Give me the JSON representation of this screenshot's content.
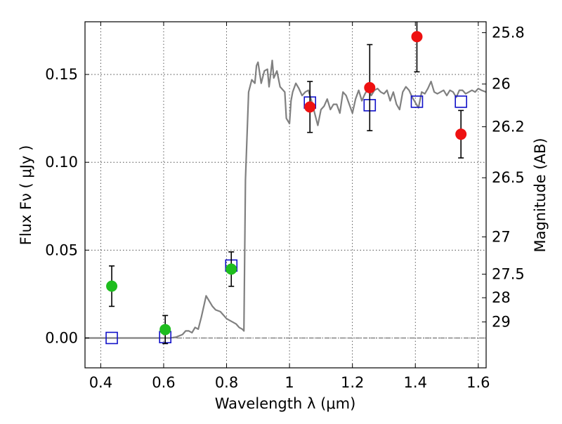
{
  "chart_data": {
    "type": "scatter",
    "xlabel": "Wavelength  λ (μm)",
    "ylabel": "Flux  Fν  ( μJy )",
    "ylabel_right": "Magnitude (AB)",
    "xlim": [
      0.35,
      1.625
    ],
    "ylim": [
      -0.017,
      0.18
    ],
    "x_ticks": [
      0.4,
      0.6,
      0.8,
      1.0,
      1.2,
      1.4,
      1.6
    ],
    "x_tick_labels": [
      "0.4",
      "0.6",
      "0.8",
      "1",
      "1.2",
      "1.4",
      "1.6"
    ],
    "y_ticks": [
      0.0,
      0.05,
      0.1,
      0.15
    ],
    "y_tick_labels": [
      "0.00",
      "0.05",
      "0.10",
      "0.15"
    ],
    "right_ticks": [
      {
        "label": "25.8",
        "mag": 25.8
      },
      {
        "label": "26",
        "mag": 26.0
      },
      {
        "label": "26.2",
        "mag": 26.2
      },
      {
        "label": "26.5",
        "mag": 26.5
      },
      {
        "label": "27",
        "mag": 27.0
      },
      {
        "label": "27.5",
        "mag": 27.5
      },
      {
        "label": "28",
        "mag": 28.0
      },
      {
        "label": "29",
        "mag": 29.0
      }
    ],
    "grid": true,
    "zero_line": 0.0,
    "colors": {
      "model": "#808080",
      "green": "#1ebd1e",
      "red": "#ee1111",
      "blue": "#1010c8",
      "errorbar": "#000000"
    },
    "model_spectrum": [
      [
        0.35,
        0.0
      ],
      [
        0.62,
        0.0
      ],
      [
        0.64,
        0.0005
      ],
      [
        0.66,
        0.002
      ],
      [
        0.67,
        0.004
      ],
      [
        0.68,
        0.004
      ],
      [
        0.69,
        0.003
      ],
      [
        0.7,
        0.006
      ],
      [
        0.71,
        0.005
      ],
      [
        0.72,
        0.012
      ],
      [
        0.73,
        0.02
      ],
      [
        0.735,
        0.024
      ],
      [
        0.745,
        0.021
      ],
      [
        0.755,
        0.018
      ],
      [
        0.765,
        0.016
      ],
      [
        0.78,
        0.015
      ],
      [
        0.79,
        0.013
      ],
      [
        0.8,
        0.011
      ],
      [
        0.81,
        0.01
      ],
      [
        0.82,
        0.009
      ],
      [
        0.83,
        0.008
      ],
      [
        0.84,
        0.006
      ],
      [
        0.85,
        0.005
      ],
      [
        0.855,
        0.004
      ],
      [
        0.86,
        0.09
      ],
      [
        0.87,
        0.14
      ],
      [
        0.88,
        0.147
      ],
      [
        0.89,
        0.145
      ],
      [
        0.895,
        0.155
      ],
      [
        0.9,
        0.157
      ],
      [
        0.91,
        0.145
      ],
      [
        0.92,
        0.152
      ],
      [
        0.93,
        0.153
      ],
      [
        0.935,
        0.143
      ],
      [
        0.94,
        0.15
      ],
      [
        0.945,
        0.158
      ],
      [
        0.95,
        0.148
      ],
      [
        0.96,
        0.152
      ],
      [
        0.97,
        0.143
      ],
      [
        0.985,
        0.14
      ],
      [
        0.99,
        0.125
      ],
      [
        1.0,
        0.122
      ],
      [
        1.005,
        0.135
      ],
      [
        1.01,
        0.14
      ],
      [
        1.02,
        0.145
      ],
      [
        1.03,
        0.142
      ],
      [
        1.04,
        0.138
      ],
      [
        1.05,
        0.14
      ],
      [
        1.06,
        0.141
      ],
      [
        1.07,
        0.135
      ],
      [
        1.08,
        0.128
      ],
      [
        1.09,
        0.121
      ],
      [
        1.1,
        0.13
      ],
      [
        1.11,
        0.132
      ],
      [
        1.12,
        0.136
      ],
      [
        1.13,
        0.13
      ],
      [
        1.14,
        0.133
      ],
      [
        1.15,
        0.133
      ],
      [
        1.16,
        0.128
      ],
      [
        1.17,
        0.14
      ],
      [
        1.18,
        0.138
      ],
      [
        1.19,
        0.133
      ],
      [
        1.2,
        0.128
      ],
      [
        1.21,
        0.136
      ],
      [
        1.22,
        0.141
      ],
      [
        1.23,
        0.135
      ],
      [
        1.24,
        0.139
      ],
      [
        1.25,
        0.142
      ],
      [
        1.26,
        0.138
      ],
      [
        1.27,
        0.141
      ],
      [
        1.28,
        0.142
      ],
      [
        1.29,
        0.14
      ],
      [
        1.3,
        0.139
      ],
      [
        1.31,
        0.141
      ],
      [
        1.32,
        0.135
      ],
      [
        1.33,
        0.14
      ],
      [
        1.34,
        0.133
      ],
      [
        1.35,
        0.13
      ],
      [
        1.36,
        0.14
      ],
      [
        1.37,
        0.143
      ],
      [
        1.38,
        0.141
      ],
      [
        1.39,
        0.137
      ],
      [
        1.4,
        0.134
      ],
      [
        1.41,
        0.131
      ],
      [
        1.42,
        0.14
      ],
      [
        1.43,
        0.139
      ],
      [
        1.44,
        0.142
      ],
      [
        1.45,
        0.146
      ],
      [
        1.46,
        0.14
      ],
      [
        1.47,
        0.139
      ],
      [
        1.48,
        0.14
      ],
      [
        1.49,
        0.141
      ],
      [
        1.5,
        0.138
      ],
      [
        1.51,
        0.141
      ],
      [
        1.52,
        0.14
      ],
      [
        1.53,
        0.137
      ],
      [
        1.54,
        0.141
      ],
      [
        1.55,
        0.141
      ],
      [
        1.56,
        0.139
      ],
      [
        1.57,
        0.14
      ],
      [
        1.58,
        0.141
      ],
      [
        1.59,
        0.14
      ],
      [
        1.6,
        0.142
      ],
      [
        1.61,
        0.141
      ],
      [
        1.625,
        0.14
      ]
    ],
    "observed": [
      {
        "x": 0.435,
        "y": 0.0295,
        "yerr": 0.0115,
        "color": "green"
      },
      {
        "x": 0.605,
        "y": 0.0048,
        "yerr": 0.008,
        "color": "green"
      },
      {
        "x": 0.815,
        "y": 0.0392,
        "yerr": 0.0098,
        "color": "green"
      },
      {
        "x": 1.065,
        "y": 0.1315,
        "yerr": 0.0145,
        "color": "red"
      },
      {
        "x": 1.255,
        "y": 0.1425,
        "yerr": 0.0245,
        "color": "red"
      },
      {
        "x": 1.405,
        "y": 0.1715,
        "yerr": 0.02,
        "color": "red"
      },
      {
        "x": 1.545,
        "y": 0.116,
        "yerr": 0.0135,
        "color": "red"
      }
    ],
    "model_bands": [
      {
        "x": 0.435,
        "y": 0.0
      },
      {
        "x": 0.605,
        "y": 0.0005
      },
      {
        "x": 0.815,
        "y": 0.0412
      },
      {
        "x": 1.065,
        "y": 0.134
      },
      {
        "x": 1.255,
        "y": 0.1325
      },
      {
        "x": 1.405,
        "y": 0.1345
      },
      {
        "x": 1.545,
        "y": 0.1345
      }
    ]
  }
}
